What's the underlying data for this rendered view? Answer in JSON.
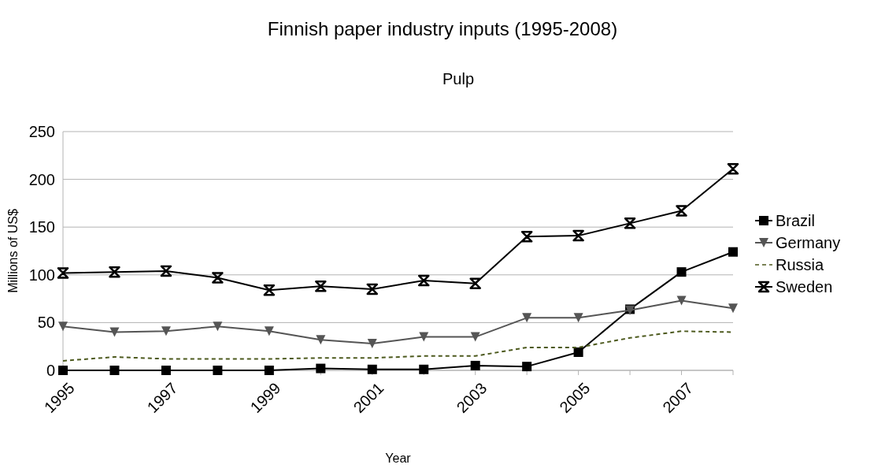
{
  "chart_data": {
    "type": "line",
    "title": "Finnish paper industry inputs (1995-2008)",
    "subtitle": "Pulp",
    "xlabel": "Year",
    "ylabel": "Millions of US$",
    "x": [
      1995,
      1996,
      1997,
      1998,
      1999,
      2000,
      2001,
      2002,
      2003,
      2004,
      2005,
      2006,
      2007,
      2008
    ],
    "xlim": [
      1995,
      2008
    ],
    "xticks": [
      1995,
      1997,
      1999,
      2001,
      2003,
      2005,
      2007
    ],
    "ylim": [
      0,
      250
    ],
    "yticks": [
      0,
      50,
      100,
      150,
      200,
      250
    ],
    "grid": "y",
    "legend": "right",
    "series": [
      {
        "name": "Brazil",
        "color": "#000000",
        "marker": "square",
        "line_style": "solid",
        "values": [
          0,
          0,
          0,
          0,
          0,
          2,
          1,
          1,
          5,
          4,
          19,
          64,
          103,
          124
        ]
      },
      {
        "name": "Germany",
        "color": "#555555",
        "marker": "triangle",
        "line_style": "solid",
        "values": [
          46,
          40,
          41,
          46,
          41,
          32,
          28,
          35,
          35,
          55,
          55,
          63,
          73,
          65
        ]
      },
      {
        "name": "Russia",
        "color": "#4d5a1e",
        "marker": "none",
        "line_style": "dashed",
        "values": [
          10,
          14,
          12,
          12,
          12,
          13,
          13,
          15,
          15,
          24,
          24,
          34,
          41,
          40
        ]
      },
      {
        "name": "Sweden",
        "color": "#000000",
        "marker": "cross",
        "line_style": "solid",
        "values": [
          102,
          103,
          104,
          97,
          84,
          88,
          85,
          94,
          91,
          140,
          141,
          154,
          167,
          211
        ]
      }
    ]
  }
}
